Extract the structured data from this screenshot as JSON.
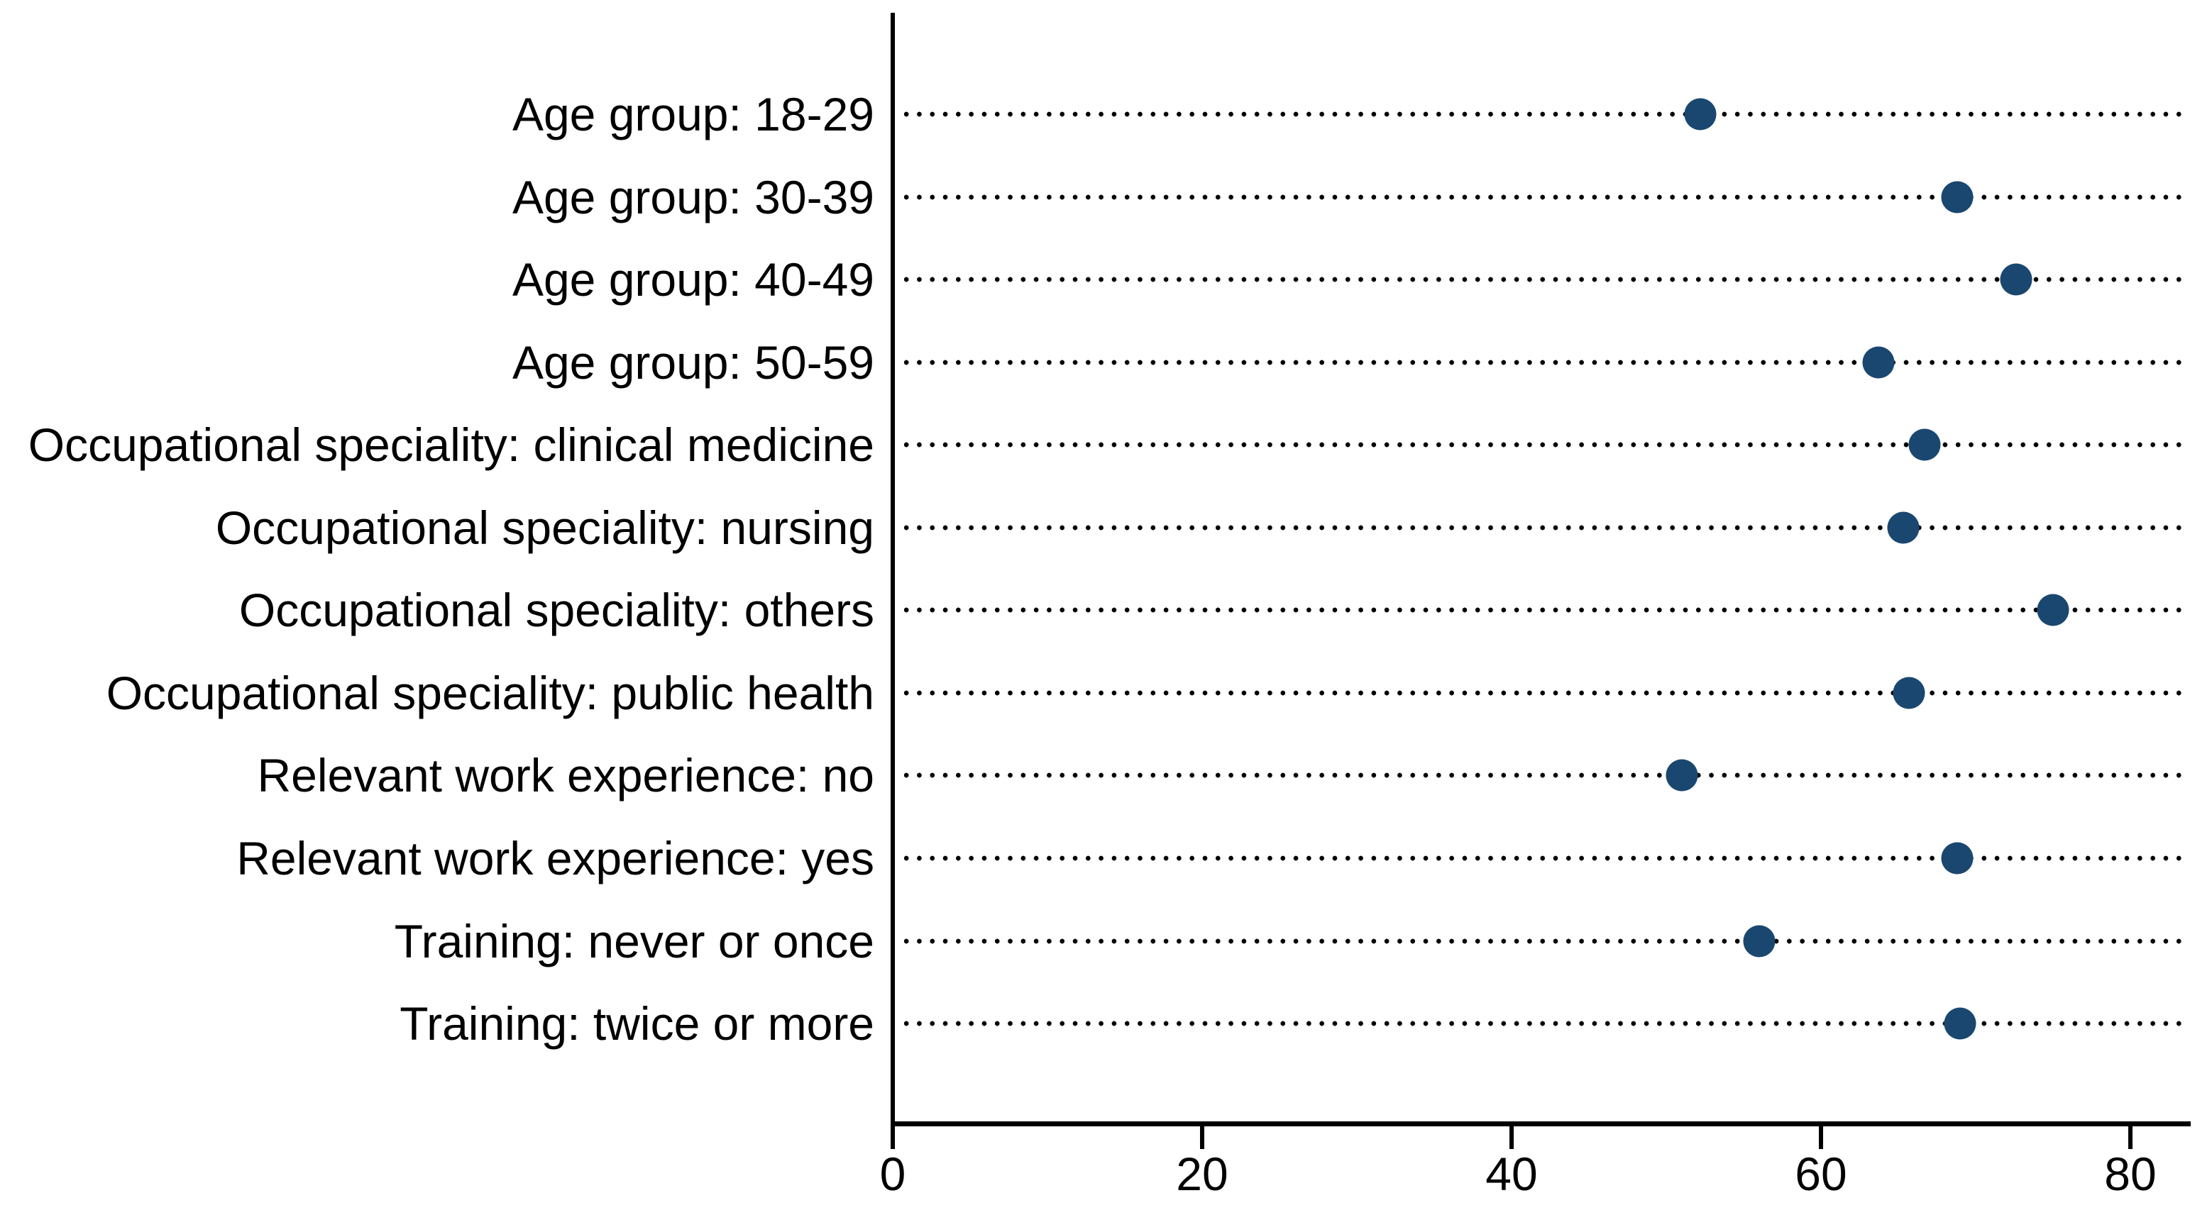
{
  "chart_data": {
    "type": "scatter",
    "variant": "horizontal-dot-plot",
    "title": "",
    "xlabel": "",
    "ylabel": "",
    "categories": [
      "Age group: 18-29",
      "Age group: 30-39",
      "Age group: 40-49",
      "Age group: 50-59",
      "Occupational speciality: clinical medicine",
      "Occupational speciality: nursing",
      "Occupational speciality: others",
      "Occupational speciality: public health",
      "Relevant work experience: no",
      "Relevant work experience: yes",
      "Training: never or once",
      "Training: twice or more"
    ],
    "values": [
      52.2,
      68.8,
      72.6,
      63.7,
      66.7,
      65.3,
      75.0,
      65.7,
      51.0,
      68.8,
      56.0,
      69.0
    ],
    "x_ticks": [
      0,
      20,
      40,
      60,
      80
    ],
    "x_tick_labels": [
      "0",
      "20",
      "40",
      "60",
      "80"
    ],
    "xlim": [
      0,
      83.9
    ],
    "grid": "dotted horizontal leader line per category",
    "legend": "none",
    "marker_color": "#1a476f",
    "axis_color": "#000000",
    "leader_dot_color": "#000000",
    "background_color": "#ffffff"
  }
}
